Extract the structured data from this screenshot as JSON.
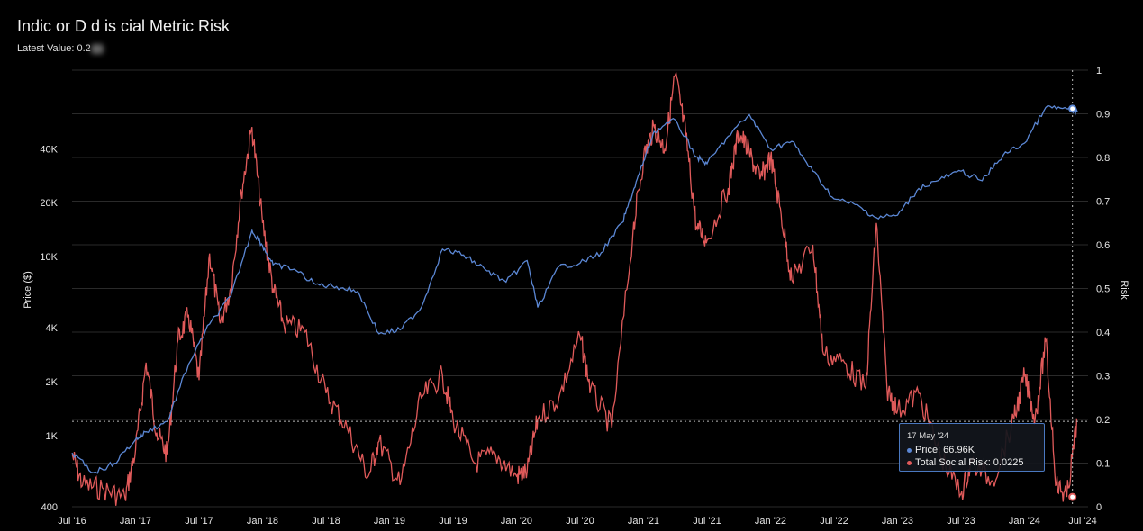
{
  "header": {
    "title": "Indic  or D   d  is      cial Metric Risk",
    "latest_value_label": "Latest Value: 0.2"
  },
  "tooltip": {
    "date": "17 May '24",
    "price_text": "Price: 66.96K",
    "risk_text": "Total Social Risk: 0.0225"
  },
  "colors": {
    "price": "#5b87d4",
    "risk": "#e05a5a",
    "background": "#000000",
    "grid": "#2a2a2a"
  },
  "chart_data": {
    "type": "line",
    "title": "Indic  or D   d  is      cial Metric Risk",
    "x_axis": {
      "ticks": [
        "Jul '16",
        "Jan '17",
        "Jul '17",
        "Jan '18",
        "Jul '18",
        "Jan '19",
        "Jul '19",
        "Jan '20",
        "Jul '20",
        "Jan '21",
        "Jul '21",
        "Jan '22",
        "Jul '22",
        "Jan '23",
        "Jul '23",
        "Jan '24",
        "Jul '24"
      ],
      "range": [
        "2016-07",
        "2024-07"
      ]
    },
    "y_left": {
      "label": "Price ($)",
      "scale": "log",
      "ticks": [
        "400",
        "1K",
        "2K",
        "4K",
        "10K",
        "20K",
        "40K"
      ],
      "tick_values": [
        400,
        1000,
        2000,
        4000,
        10000,
        20000,
        40000
      ],
      "range": [
        400,
        110000
      ]
    },
    "y_right": {
      "label": "Risk",
      "ticks": [
        "0",
        "0.1",
        "0.2",
        "0.3",
        "0.4",
        "0.5",
        "0.6",
        "0.7",
        "0.8",
        "0.9",
        "1"
      ],
      "range": [
        0,
        1
      ]
    },
    "grid": true,
    "crosshair": {
      "date": "2024-05-17",
      "price": 1200
    },
    "series": [
      {
        "name": "Price",
        "axis": "left",
        "x": [
          "2016-07",
          "2016-09",
          "2016-11",
          "2017-01",
          "2017-02",
          "2017-04",
          "2017-06",
          "2017-08",
          "2017-10",
          "2017-12",
          "2018-01",
          "2018-02",
          "2018-04",
          "2018-06",
          "2018-08",
          "2018-10",
          "2018-12",
          "2019-02",
          "2019-04",
          "2019-06",
          "2019-08",
          "2019-10",
          "2019-12",
          "2020-02",
          "2020-03",
          "2020-05",
          "2020-07",
          "2020-09",
          "2020-11",
          "2020-12",
          "2021-01",
          "2021-02",
          "2021-04",
          "2021-06",
          "2021-07",
          "2021-09",
          "2021-11",
          "2022-01",
          "2022-03",
          "2022-05",
          "2022-07",
          "2022-09",
          "2022-11",
          "2023-01",
          "2023-03",
          "2023-05",
          "2023-07",
          "2023-09",
          "2023-11",
          "2024-01",
          "2024-03",
          "2024-05",
          "2024-06"
        ],
        "values": [
          800,
          620,
          700,
          950,
          1050,
          1200,
          2500,
          4200,
          6000,
          14000,
          11500,
          9000,
          8500,
          7000,
          6800,
          6400,
          3700,
          3900,
          5200,
          11000,
          10200,
          8500,
          7200,
          9500,
          5200,
          8800,
          9200,
          10500,
          15500,
          23000,
          34000,
          50000,
          58000,
          36000,
          33000,
          47000,
          62000,
          40000,
          44000,
          30000,
          21000,
          19500,
          16500,
          17000,
          24000,
          27000,
          30000,
          26500,
          37000,
          43000,
          68000,
          66960,
          64000
        ]
      },
      {
        "name": "Total Social Risk",
        "axis": "right",
        "x": [
          "2016-07",
          "2016-08",
          "2016-10",
          "2016-12",
          "2017-01",
          "2017-02",
          "2017-03",
          "2017-04",
          "2017-05",
          "2017-06",
          "2017-07",
          "2017-08",
          "2017-09",
          "2017-10",
          "2017-11",
          "2017-12",
          "2018-01",
          "2018-02",
          "2018-03",
          "2018-05",
          "2018-07",
          "2018-09",
          "2018-11",
          "2018-12",
          "2019-02",
          "2019-04",
          "2019-06",
          "2019-07",
          "2019-09",
          "2019-11",
          "2020-01",
          "2020-02",
          "2020-03",
          "2020-05",
          "2020-07",
          "2020-08",
          "2020-10",
          "2020-12",
          "2021-01",
          "2021-02",
          "2021-03",
          "2021-04",
          "2021-05",
          "2021-06",
          "2021-07",
          "2021-09",
          "2021-10",
          "2021-11",
          "2021-12",
          "2022-01",
          "2022-02",
          "2022-03",
          "2022-05",
          "2022-06",
          "2022-08",
          "2022-10",
          "2022-11",
          "2022-12",
          "2023-01",
          "2023-03",
          "2023-05",
          "2023-07",
          "2023-08",
          "2023-10",
          "2023-12",
          "2024-01",
          "2024-02",
          "2024-03",
          "2024-04",
          "2024-05",
          "2024-06"
        ],
        "values": [
          0.12,
          0.05,
          0.04,
          0.02,
          0.13,
          0.33,
          0.17,
          0.12,
          0.38,
          0.44,
          0.29,
          0.58,
          0.42,
          0.5,
          0.72,
          0.87,
          0.65,
          0.5,
          0.42,
          0.4,
          0.26,
          0.18,
          0.07,
          0.15,
          0.05,
          0.25,
          0.3,
          0.2,
          0.1,
          0.12,
          0.07,
          0.08,
          0.2,
          0.25,
          0.39,
          0.27,
          0.18,
          0.63,
          0.8,
          0.87,
          0.82,
          0.99,
          0.85,
          0.64,
          0.61,
          0.73,
          0.86,
          0.81,
          0.75,
          0.8,
          0.67,
          0.52,
          0.6,
          0.35,
          0.33,
          0.27,
          0.65,
          0.27,
          0.22,
          0.26,
          0.12,
          0.03,
          0.1,
          0.06,
          0.2,
          0.3,
          0.2,
          0.38,
          0.05,
          0.0225,
          0.2
        ]
      }
    ]
  }
}
